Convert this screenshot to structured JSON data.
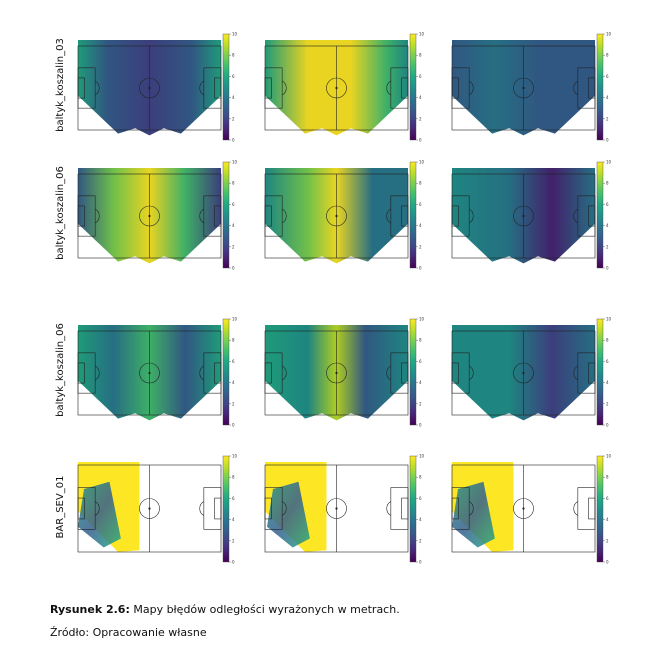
{
  "chart_data": {
    "type": "heatmap",
    "rows": [
      "baltyk_koszalin_03",
      "baltyk_koszalin_06",
      "baltyk_koszalin_06",
      "BAR_SEV_01"
    ],
    "columns": 3,
    "colorbar": {
      "min": 0,
      "max": 10,
      "ticks": [
        "0",
        "2",
        "4",
        "6",
        "8",
        "10"
      ],
      "colormap": "viridis"
    }
  },
  "caption": {
    "label": "Rysunek 2.6:",
    "text": " Mapy błędów odległości wyrażonych w metrach."
  },
  "source": "Źródło: Opracowanie własne",
  "colors": {
    "viridis": [
      "#440154",
      "#482475",
      "#414487",
      "#355f8d",
      "#2a788e",
      "#21918c",
      "#22a884",
      "#44bf70",
      "#7ad151",
      "#bddf26",
      "#fde725"
    ]
  }
}
